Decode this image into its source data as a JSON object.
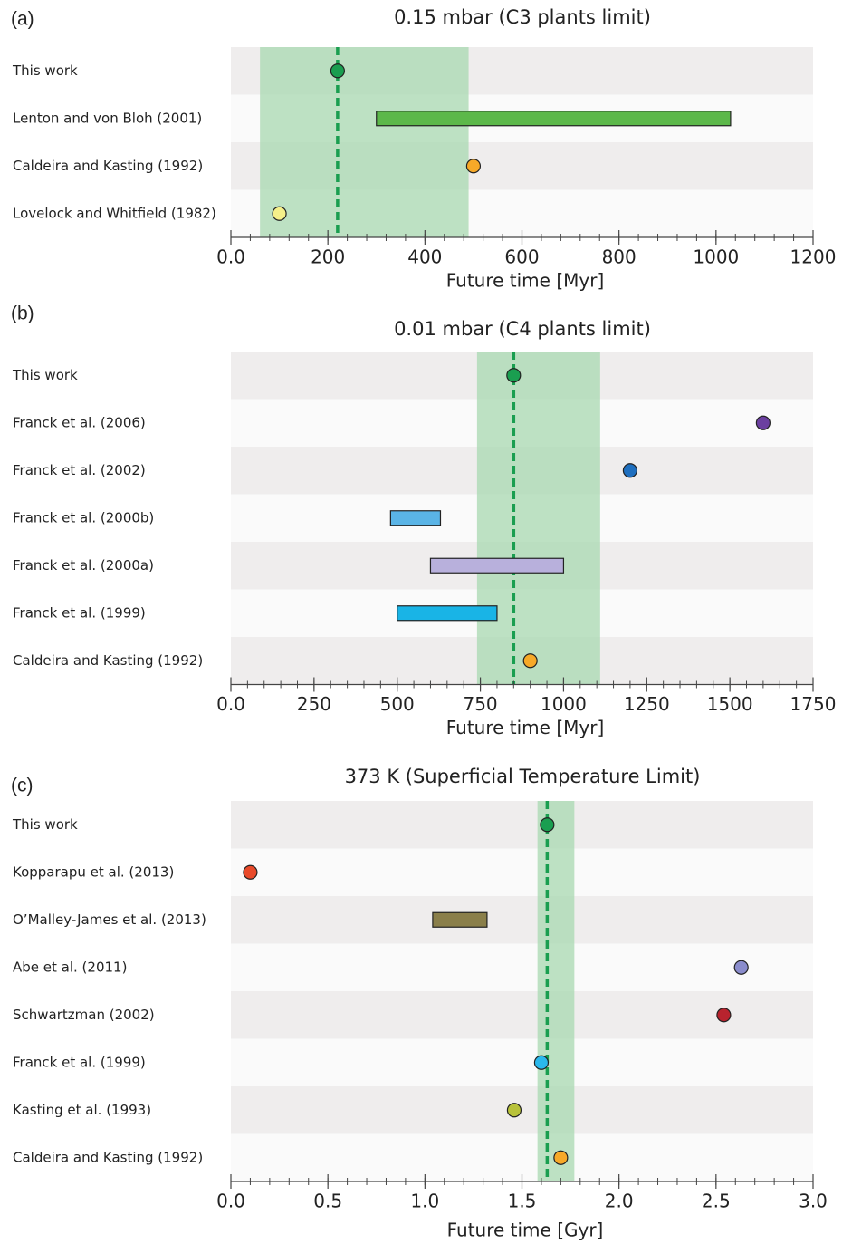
{
  "chart_data": [
    {
      "type": "interval",
      "panel_label": "(a)",
      "title": "0.15 mbar (C3 plants limit)",
      "xlabel": "Future time [Myr]",
      "categories": [
        "This work",
        "Lenton and  von Bloh (2001)",
        "Caldeira and  Kasting (1992)",
        "Lovelock and  Whitfield (1982)"
      ],
      "values": [
        220,
        [
          300,
          1030
        ],
        500,
        100
      ],
      "colors": [
        "#1a9e50",
        "#5cb84a",
        "#f7a928",
        "#f5f08a"
      ],
      "band": [
        60,
        490
      ],
      "band_color": "#a8d8b0",
      "reference": 220,
      "reference_color": "#1a9e50",
      "xlim": [
        0,
        1200
      ],
      "xticks": [
        {
          "value": 0,
          "label": "0.0"
        },
        200,
        400,
        600,
        800,
        1000,
        1200
      ],
      "minor_step": 40
    },
    {
      "type": "interval",
      "panel_label": "(b)",
      "title": "0.01 mbar (C4 plants limit)",
      "xlabel": "Future time [Myr]",
      "categories": [
        "This work",
        "Franck et al. (2006)",
        "Franck et al. (2002)",
        "Franck et al. (2000b)",
        "Franck et al. (2000a)",
        "Franck et al. (1999)",
        "Caldeira and Kasting (1992)"
      ],
      "values": [
        850,
        1600,
        1200,
        [
          480,
          630
        ],
        [
          600,
          1000
        ],
        [
          500,
          800
        ],
        900
      ],
      "colors": [
        "#1a9e50",
        "#6b3fa0",
        "#1f6fbf",
        "#5ab4e6",
        "#b8b0dc",
        "#19b4e6",
        "#f7a928"
      ],
      "band": [
        740,
        1110
      ],
      "band_color": "#a8d8b0",
      "reference": 850,
      "reference_color": "#1a9e50",
      "xlim": [
        0,
        1750
      ],
      "xticks": [
        {
          "value": 0,
          "label": "0.0"
        },
        250,
        500,
        750,
        1000,
        1250,
        1500,
        1750
      ],
      "minor_step": 50
    },
    {
      "type": "interval",
      "panel_label": "(c)",
      "title": "373 K (Superficial Temperature Limit)",
      "xlabel": "Future time [Gyr]",
      "categories": [
        "This work",
        "Kopparapu et al. (2013)",
        "O’Malley-James et al. (2013)",
        "Abe et al. (2011)",
        "Schwartzman (2002)",
        "Franck et al. (1999)",
        "Kasting et al. (1993)",
        "Caldeira and  Kasting (1992)"
      ],
      "values": [
        1.63,
        0.1,
        [
          1.04,
          1.32
        ],
        2.63,
        2.54,
        1.6,
        1.46,
        1.7
      ],
      "colors": [
        "#1a9e50",
        "#e84a2a",
        "#8a7f4a",
        "#8a8ccc",
        "#b8232e",
        "#2ab8ec",
        "#b8c23a",
        "#f7a928"
      ],
      "band": [
        1.58,
        1.77
      ],
      "band_color": "#a8d8b0",
      "reference": 1.63,
      "reference_color": "#1a9e50",
      "xlim": [
        0,
        3
      ],
      "xticks": [
        {
          "value": 0,
          "label": "0.0"
        },
        0.5,
        {
          "value": 1,
          "label": "1.0"
        },
        1.5,
        {
          "value": 2,
          "label": "2.0"
        },
        2.5,
        {
          "value": 3,
          "label": "3.0"
        }
      ],
      "minor_step": 0.1
    }
  ]
}
